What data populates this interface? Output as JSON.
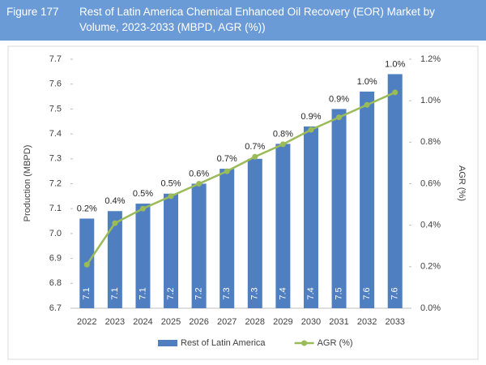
{
  "chart_data": {
    "type": "bar",
    "figure_label": "Figure 177",
    "title": "Rest of Latin America Chemical Enhanced Oil Recovery (EOR) Market by Volume, 2023-2033 (MBPD, AGR (%))",
    "ylabel": "Production (MBPD)",
    "y2label": "AGR (%)",
    "categories": [
      "2022",
      "2023",
      "2024",
      "2025",
      "2026",
      "2027",
      "2028",
      "2029",
      "2030",
      "2031",
      "2032",
      "2033"
    ],
    "series": [
      {
        "name": "Rest of Latin America",
        "type": "bar",
        "color": "#4f7fc0",
        "values": [
          7.06,
          7.09,
          7.12,
          7.16,
          7.2,
          7.26,
          7.3,
          7.36,
          7.43,
          7.5,
          7.57,
          7.64
        ],
        "value_labels": [
          "7.1",
          "7.1",
          "7.1",
          "7.2",
          "7.2",
          "7.3",
          "7.3",
          "7.4",
          "7.4",
          "7.5",
          "7.6",
          "7.6"
        ]
      },
      {
        "name": "AGR (%)",
        "type": "line",
        "axis": "y2",
        "color": "#9bbb59",
        "values": [
          0.21,
          0.41,
          0.48,
          0.54,
          0.6,
          0.66,
          0.73,
          0.79,
          0.86,
          0.92,
          0.98,
          1.04
        ],
        "value_labels": [
          "0.2%",
          "0.4%",
          "0.5%",
          "0.5%",
          "0.6%",
          "0.7%",
          "0.7%",
          "0.8%",
          "0.9%",
          "0.9%",
          "1.0%",
          "1.0%"
        ]
      }
    ],
    "ylim": [
      6.7,
      7.7
    ],
    "yticks": [
      6.7,
      6.8,
      6.9,
      {
        "value": 7,
        "label": "7.0"
      },
      7.1,
      7.2,
      7.3,
      7.4,
      7.5,
      7.6,
      7.7
    ],
    "y2lim": [
      0,
      1.2
    ],
    "y2ticks": [
      {
        "value": 0,
        "label": "0.0%"
      },
      {
        "value": 0.2,
        "label": "0.2%"
      },
      {
        "value": 0.4,
        "label": "0.4%"
      },
      {
        "value": 0.6,
        "label": "0.6%"
      },
      {
        "value": 0.8,
        "label": "0.8%"
      },
      {
        "value": 1.0,
        "label": "1.0%"
      },
      {
        "value": 1.2,
        "label": "1.2%"
      }
    ],
    "grid": false,
    "legend": "bottom"
  }
}
